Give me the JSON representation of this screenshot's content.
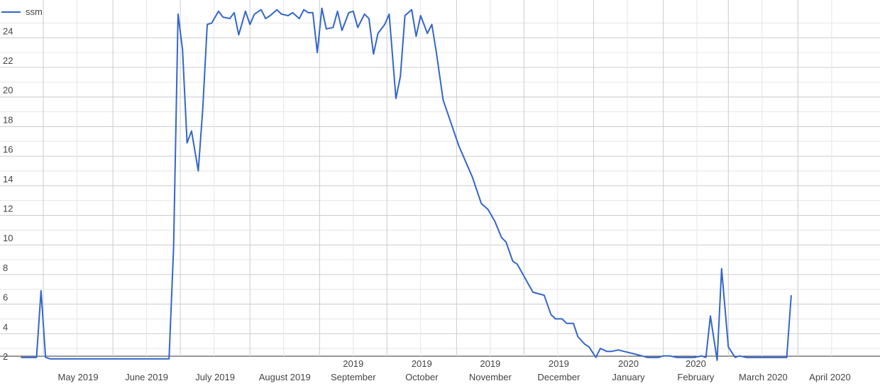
{
  "chart_data": {
    "type": "line",
    "title": "",
    "xlabel": "",
    "ylabel": "",
    "ylim": [
      2,
      26
    ],
    "y_ticks": [
      2,
      4,
      6,
      8,
      10,
      12,
      14,
      16,
      18,
      20,
      22,
      24
    ],
    "grid": true,
    "legend_position": "top-left",
    "colors": {
      "line": "#3366cc",
      "grid": "#cccccc",
      "minor_grid": "#e6e6e6",
      "text": "#444444"
    },
    "x_ticks": [
      {
        "date": "2019-05-01",
        "upper": "",
        "lower": "May 2019"
      },
      {
        "date": "2019-06-01",
        "upper": "",
        "lower": "June 2019"
      },
      {
        "date": "2019-07-01",
        "upper": "",
        "lower": "July 2019"
      },
      {
        "date": "2019-08-01",
        "upper": "",
        "lower": "August 2019"
      },
      {
        "date": "2019-09-01",
        "upper": "2019",
        "lower": "September"
      },
      {
        "date": "2019-10-01",
        "upper": "2019",
        "lower": "October"
      },
      {
        "date": "2019-11-01",
        "upper": "2019",
        "lower": "November"
      },
      {
        "date": "2019-12-01",
        "upper": "2019",
        "lower": "December"
      },
      {
        "date": "2020-01-01",
        "upper": "2020",
        "lower": "January"
      },
      {
        "date": "2020-02-01",
        "upper": "2020",
        "lower": "February"
      },
      {
        "date": "2020-03-01",
        "upper": "",
        "lower": "March 2020"
      },
      {
        "date": "2020-04-01",
        "upper": "",
        "lower": "April 2020"
      }
    ],
    "series": [
      {
        "name": "ssm",
        "points": [
          [
            "2019-04-21",
            2.4
          ],
          [
            "2019-04-28",
            2.4
          ],
          [
            "2019-04-30",
            6.9
          ],
          [
            "2019-05-02",
            2.4
          ],
          [
            "2019-05-04",
            2.3
          ],
          [
            "2019-05-09",
            2.3
          ],
          [
            "2019-05-19",
            2.3
          ],
          [
            "2019-06-03",
            2.3
          ],
          [
            "2019-06-18",
            2.3
          ],
          [
            "2019-06-26",
            2.3
          ],
          [
            "2019-06-28",
            9.8
          ],
          [
            "2019-06-30",
            25.6
          ],
          [
            "2019-07-02",
            23.2
          ],
          [
            "2019-07-04",
            16.9
          ],
          [
            "2019-07-06",
            17.7
          ],
          [
            "2019-07-09",
            15.0
          ],
          [
            "2019-07-11",
            19.2
          ],
          [
            "2019-07-13",
            24.9
          ],
          [
            "2019-07-15",
            25.0
          ],
          [
            "2019-07-18",
            25.8
          ],
          [
            "2019-07-20",
            25.4
          ],
          [
            "2019-07-23",
            25.3
          ],
          [
            "2019-07-25",
            25.7
          ],
          [
            "2019-07-27",
            24.2
          ],
          [
            "2019-07-30",
            25.8
          ],
          [
            "2019-08-01",
            24.9
          ],
          [
            "2019-08-03",
            25.6
          ],
          [
            "2019-08-06",
            25.9
          ],
          [
            "2019-08-08",
            25.3
          ],
          [
            "2019-08-10",
            25.5
          ],
          [
            "2019-08-13",
            25.9
          ],
          [
            "2019-08-15",
            25.6
          ],
          [
            "2019-08-18",
            25.5
          ],
          [
            "2019-08-20",
            25.7
          ],
          [
            "2019-08-23",
            25.3
          ],
          [
            "2019-08-25",
            25.9
          ],
          [
            "2019-08-27",
            25.7
          ],
          [
            "2019-08-29",
            25.7
          ],
          [
            "2019-08-31",
            23.0
          ],
          [
            "2019-09-02",
            26.0
          ],
          [
            "2019-09-04",
            24.6
          ],
          [
            "2019-09-07",
            24.7
          ],
          [
            "2019-09-09",
            25.8
          ],
          [
            "2019-09-11",
            24.5
          ],
          [
            "2019-09-14",
            25.7
          ],
          [
            "2019-09-16",
            25.8
          ],
          [
            "2019-09-18",
            24.7
          ],
          [
            "2019-09-21",
            25.6
          ],
          [
            "2019-09-23",
            25.3
          ],
          [
            "2019-09-25",
            22.9
          ],
          [
            "2019-09-27",
            24.3
          ],
          [
            "2019-09-30",
            24.9
          ],
          [
            "2019-10-02",
            25.6
          ],
          [
            "2019-10-05",
            19.9
          ],
          [
            "2019-10-07",
            21.4
          ],
          [
            "2019-10-09",
            25.5
          ],
          [
            "2019-10-12",
            25.9
          ],
          [
            "2019-10-14",
            24.1
          ],
          [
            "2019-10-16",
            25.5
          ],
          [
            "2019-10-19",
            24.3
          ],
          [
            "2019-10-21",
            24.9
          ],
          [
            "2019-10-23",
            23.0
          ],
          [
            "2019-10-26",
            19.8
          ],
          [
            "2019-11-02",
            16.7
          ],
          [
            "2019-11-08",
            14.6
          ],
          [
            "2019-11-12",
            12.8
          ],
          [
            "2019-11-15",
            12.4
          ],
          [
            "2019-11-18",
            11.6
          ],
          [
            "2019-11-21",
            10.5
          ],
          [
            "2019-11-23",
            10.2
          ],
          [
            "2019-11-26",
            8.9
          ],
          [
            "2019-11-28",
            8.7
          ],
          [
            "2019-12-05",
            6.8
          ],
          [
            "2019-12-10",
            6.6
          ],
          [
            "2019-12-13",
            5.3
          ],
          [
            "2019-12-15",
            5.0
          ],
          [
            "2019-12-18",
            5.0
          ],
          [
            "2019-12-20",
            4.7
          ],
          [
            "2019-12-23",
            4.7
          ],
          [
            "2019-12-25",
            3.8
          ],
          [
            "2019-12-28",
            3.3
          ],
          [
            "2019-12-30",
            3.1
          ],
          [
            "2020-01-02",
            2.4
          ],
          [
            "2020-01-04",
            3.0
          ],
          [
            "2020-01-07",
            2.8
          ],
          [
            "2020-01-09",
            2.8
          ],
          [
            "2020-01-12",
            2.9
          ],
          [
            "2020-01-20",
            2.6
          ],
          [
            "2020-01-25",
            2.4
          ],
          [
            "2020-01-30",
            2.4
          ],
          [
            "2020-02-01",
            2.5
          ],
          [
            "2020-02-04",
            2.5
          ],
          [
            "2020-02-07",
            2.4
          ],
          [
            "2020-02-10",
            2.4
          ],
          [
            "2020-02-15",
            2.4
          ],
          [
            "2020-02-18",
            2.5
          ],
          [
            "2020-02-20",
            2.4
          ],
          [
            "2020-02-22",
            5.2
          ],
          [
            "2020-02-25",
            2.2
          ],
          [
            "2020-02-27",
            8.4
          ],
          [
            "2020-03-01",
            3.1
          ],
          [
            "2020-03-04",
            2.4
          ],
          [
            "2020-03-06",
            2.5
          ],
          [
            "2020-03-09",
            2.4
          ],
          [
            "2020-03-14",
            2.4
          ],
          [
            "2020-03-19",
            2.4
          ],
          [
            "2020-03-27",
            2.4
          ],
          [
            "2020-03-29",
            6.6
          ]
        ]
      }
    ]
  }
}
